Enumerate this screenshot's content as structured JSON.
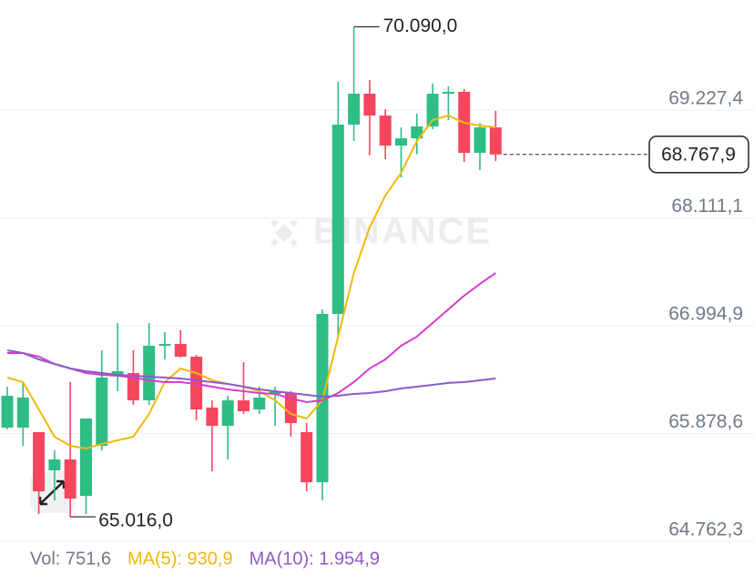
{
  "chart_data": {
    "type": "candlestick",
    "watermark": "BINANCE",
    "up_color": "#2ebd85",
    "down_color": "#f6465d",
    "open": [
      65940,
      65940,
      65893,
      65497,
      65610,
      65233,
      65751,
      66486,
      66505,
      66222,
      66787,
      66806,
      66674,
      66147,
      65958,
      66222,
      66128,
      66288,
      66298,
      65893,
      65374,
      67117,
      69077,
      69397,
      69171,
      68860,
      68935,
      69058,
      69397,
      69416,
      68785,
      69048
    ],
    "high": [
      66364,
      66411,
      65893,
      65704,
      66411,
      66034,
      66740,
      67023,
      66740,
      67023,
      66929,
      66948,
      66693,
      66222,
      66269,
      66618,
      66364,
      66364,
      66317,
      65987,
      67164,
      69519,
      70090,
      69538,
      69237,
      69048,
      69190,
      69501,
      69472,
      69444,
      69095,
      69218
    ],
    "low": [
      65921,
      65751,
      65045,
      65186,
      65016,
      65045,
      65704,
      66317,
      66175,
      66175,
      66646,
      66665,
      66015,
      65487,
      65610,
      66081,
      66081,
      65958,
      65845,
      65280,
      65186,
      66882,
      68907,
      68760,
      68719,
      68530,
      68770,
      69030,
      69124,
      68690,
      68606,
      68700
    ],
    "close": [
      66269,
      66251,
      65280,
      65610,
      65205,
      66034,
      66458,
      66524,
      66222,
      66787,
      66806,
      66674,
      66128,
      65958,
      66222,
      66109,
      66251,
      66317,
      65987,
      65374,
      67117,
      69077,
      69397,
      69171,
      68860,
      68935,
      69058,
      69397,
      69416,
      68785,
      69048,
      68767.9
    ],
    "ma_lines": [
      {
        "color": "#f0b90b",
        "values": [
          66458,
          66411,
          66128,
          65846,
          65751,
          65723,
          65770,
          65808,
          65846,
          66081,
          66411,
          66552,
          66505,
          66430,
          66392,
          66364,
          66317,
          66222,
          66081,
          66034,
          66222,
          66882,
          67541,
          68012,
          68342,
          68577,
          68907,
          69124,
          69171,
          69096,
          69067,
          69048
        ]
      },
      {
        "color": "#d63ccf",
        "values": [
          66712,
          66712,
          66675,
          66599,
          66552,
          66505,
          66486,
          66477,
          66458,
          66430,
          66411,
          66411,
          66392,
          66364,
          66335,
          66317,
          66298,
          66288,
          66241,
          66204,
          66222,
          66298,
          66411,
          66552,
          66646,
          66788,
          66882,
          67023,
          67164,
          67306,
          67428,
          67541
        ]
      },
      {
        "color": "#8c5cc7",
        "values": [
          66740,
          66712,
          66646,
          66599,
          66552,
          66524,
          66505,
          66486,
          66477,
          66467,
          66458,
          66448,
          66430,
          66411,
          66392,
          66364,
          66335,
          66317,
          66298,
          66279,
          66260,
          66269,
          66288,
          66298,
          66317,
          66345,
          66364,
          66383,
          66402,
          66411,
          66430,
          66448
        ]
      }
    ],
    "ylim": [
      64715.2,
      70367.2
    ],
    "yticks": [
      {
        "value": 69227.4,
        "label": "69.227,4"
      },
      {
        "value": 68111.1,
        "label": "68.111,1"
      },
      {
        "value": 66994.9,
        "label": "66.994,9"
      },
      {
        "value": 65878.6,
        "label": "65.878,6"
      },
      {
        "value": 64762.3,
        "label": "64.762,3"
      }
    ],
    "grid": true,
    "high_marker": {
      "index": 22,
      "value": 70090,
      "label": "70.090,0"
    },
    "low_marker": {
      "index": 4,
      "value": 65016,
      "label": "65.016,0"
    },
    "last_price": {
      "value": 68767.9,
      "label": "68.767,9"
    },
    "footer": [
      {
        "text": "Vol: 751,6",
        "color": "#707a8a"
      },
      {
        "text": "MA(5): 930,9",
        "color": "#f0b90b"
      },
      {
        "text": "MA(10): 1.954,9",
        "color": "#8c5cc7"
      }
    ]
  }
}
